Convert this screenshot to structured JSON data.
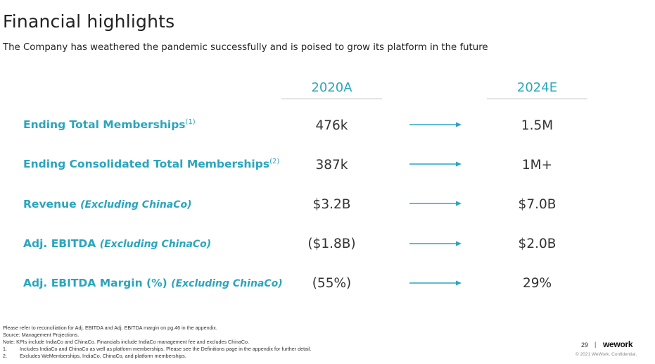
{
  "header": {
    "title": "Financial highlights",
    "subtitle": "The Company has weathered the pandemic successfully and is poised to grow its platform in the future"
  },
  "columns": {
    "col1": "2020A",
    "col2": "2024E"
  },
  "rows": [
    {
      "label": "Ending Total Memberships",
      "sup": "(1)",
      "qualifier": "",
      "v2020": "476k",
      "v2024": "1.5M"
    },
    {
      "label": "Ending Consolidated Total Memberships",
      "sup": "(2)",
      "qualifier": "",
      "v2020": "387k",
      "v2024": "1M+"
    },
    {
      "label": "Revenue",
      "sup": "",
      "qualifier": "(Excluding ChinaCo)",
      "v2020": "$3.2B",
      "v2024": "$7.0B"
    },
    {
      "label": "Adj. EBITDA",
      "sup": "",
      "qualifier": "(Excluding ChinaCo)",
      "v2020": "($1.8B)",
      "v2024": "$2.0B"
    },
    {
      "label": "Adj. EBITDA Margin (%)",
      "sup": "",
      "qualifier": "(Excluding ChinaCo)",
      "v2020": "(55%)",
      "v2024": "29%"
    }
  ],
  "footnotes": {
    "line1": "Please refer to reconciliation for Adj. EBITDA and Adj. EBITDA margin on pg.46 in the appendix.",
    "line2": "Source: Management Projections.",
    "line3": "Note: KPIs include IndiaCo and ChinaCo. Financials include IndiaCo management fee and excludes ChinaCo.",
    "note1_num": "1.",
    "note1": "Includes IndiaCo and ChinaCo as well as platform memberships. Please see the Definitions page in the appendix for further detail.",
    "note2_num": "2.",
    "note2": "Excludes WeMemberships, IndiaCo, ChinaCo, and platform memberships."
  },
  "footer": {
    "page_number": "29",
    "separator": "|",
    "logo": "wework",
    "confidential": "© 2021 WeWork. Confidential."
  },
  "colors": {
    "accent": "#2ba5bd",
    "text": "#333333",
    "rule": "#bdbdbd"
  },
  "icons": [
    "arrow-right-icon"
  ]
}
